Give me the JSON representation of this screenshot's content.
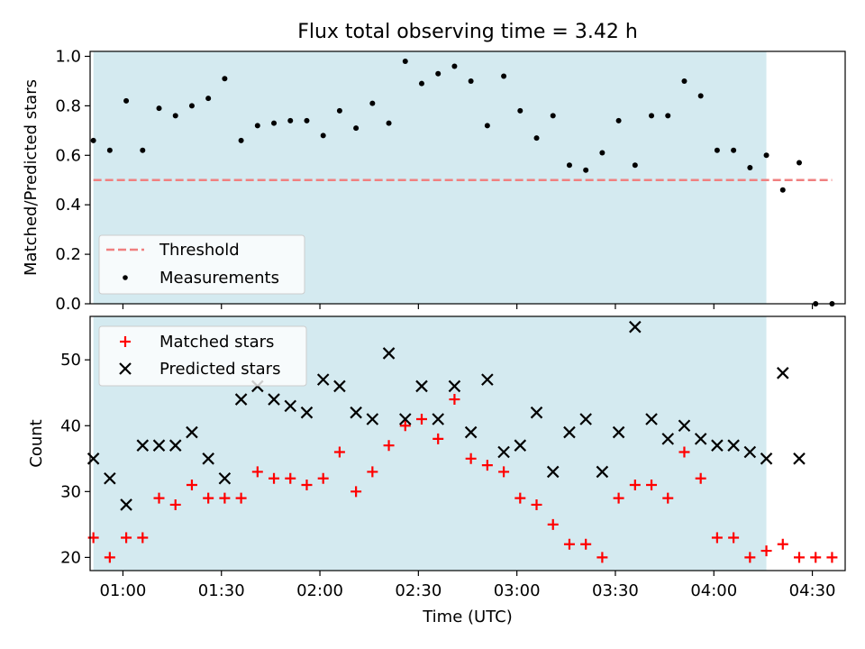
{
  "figure": {
    "title": "Flux total observing time = 3.42 h",
    "xlabel": "Time (UTC)"
  },
  "x_ticks": [
    "01:00",
    "01:30",
    "02:00",
    "02:30",
    "03:00",
    "03:30",
    "04:00",
    "04:30"
  ],
  "shade_color": "#d4eaf0",
  "chart_data": [
    {
      "type": "scatter",
      "ylabel": "Matched/Predicted stars",
      "xlim": [
        "00:50",
        "04:40"
      ],
      "ylim": [
        0,
        1.02
      ],
      "yticks": [
        0.0,
        0.2,
        0.4,
        0.6,
        0.8,
        1.0
      ],
      "yticklabels": [
        "0.0",
        "0.2",
        "0.4",
        "0.6",
        "0.8",
        "1.0"
      ],
      "shaded_interval": [
        "00:51",
        "04:16"
      ],
      "threshold": {
        "name": "Threshold",
        "y": 0.5,
        "x_range": [
          "00:51",
          "04:36"
        ],
        "color": "#f08080",
        "style": "dashed"
      },
      "legend": {
        "position": "lower-left",
        "entries": [
          "Threshold",
          "Measurements"
        ]
      },
      "series": [
        {
          "name": "Measurements",
          "color": "#000000",
          "marker": "dot",
          "x": [
            "00:51",
            "00:56",
            "01:01",
            "01:06",
            "01:11",
            "01:16",
            "01:21",
            "01:26",
            "01:31",
            "01:36",
            "01:41",
            "01:46",
            "01:51",
            "01:56",
            "02:01",
            "02:06",
            "02:11",
            "02:16",
            "02:21",
            "02:26",
            "02:31",
            "02:36",
            "02:41",
            "02:46",
            "02:51",
            "02:56",
            "03:01",
            "03:06",
            "03:11",
            "03:16",
            "03:21",
            "03:26",
            "03:31",
            "03:36",
            "03:41",
            "03:46",
            "03:51",
            "03:56",
            "04:01",
            "04:06",
            "04:11",
            "04:16",
            "04:21",
            "04:26",
            "04:31",
            "04:36"
          ],
          "y": [
            0.66,
            0.62,
            0.82,
            0.62,
            0.79,
            0.76,
            0.8,
            0.83,
            0.91,
            0.66,
            0.72,
            0.73,
            0.74,
            0.74,
            0.68,
            0.78,
            0.71,
            0.81,
            0.73,
            0.98,
            0.89,
            0.93,
            0.96,
            0.9,
            0.72,
            0.92,
            0.78,
            0.67,
            0.76,
            0.56,
            0.54,
            0.61,
            0.74,
            0.56,
            0.76,
            0.76,
            0.9,
            0.84,
            0.62,
            0.62,
            0.55,
            0.6,
            0.46,
            0.57,
            0.0,
            0.0
          ]
        }
      ]
    },
    {
      "type": "scatter",
      "ylabel": "Count",
      "xlim": [
        "00:50",
        "04:40"
      ],
      "ylim": [
        18,
        56.6
      ],
      "yticks": [
        20,
        30,
        40,
        50
      ],
      "yticklabels": [
        "20",
        "30",
        "40",
        "50"
      ],
      "shaded_interval": [
        "00:51",
        "04:16"
      ],
      "legend": {
        "position": "upper-left",
        "entries": [
          "Matched stars",
          "Predicted stars"
        ]
      },
      "series": [
        {
          "name": "Matched stars",
          "color": "#ff0000",
          "marker": "plus",
          "x": [
            "00:51",
            "00:56",
            "01:01",
            "01:06",
            "01:11",
            "01:16",
            "01:21",
            "01:26",
            "01:31",
            "01:36",
            "01:41",
            "01:46",
            "01:51",
            "01:56",
            "02:01",
            "02:06",
            "02:11",
            "02:16",
            "02:21",
            "02:26",
            "02:31",
            "02:36",
            "02:41",
            "02:46",
            "02:51",
            "02:56",
            "03:01",
            "03:06",
            "03:11",
            "03:16",
            "03:21",
            "03:26",
            "03:31",
            "03:36",
            "03:41",
            "03:46",
            "03:51",
            "03:56",
            "04:01",
            "04:06",
            "04:11",
            "04:16",
            "04:21",
            "04:26",
            "04:31",
            "04:36"
          ],
          "y": [
            23,
            20,
            23,
            23,
            29,
            28,
            31,
            29,
            29,
            29,
            33,
            32,
            32,
            31,
            32,
            36,
            30,
            33,
            37,
            40,
            41,
            38,
            44,
            35,
            34,
            33,
            29,
            28,
            25,
            22,
            22,
            20,
            29,
            31,
            31,
            29,
            36,
            32,
            23,
            23,
            20,
            21,
            22,
            20,
            20,
            20
          ]
        },
        {
          "name": "Predicted stars",
          "color": "#000000",
          "marker": "x",
          "x": [
            "00:51",
            "00:56",
            "01:01",
            "01:06",
            "01:11",
            "01:16",
            "01:21",
            "01:26",
            "01:31",
            "01:36",
            "01:41",
            "01:46",
            "01:51",
            "01:56",
            "02:01",
            "02:06",
            "02:11",
            "02:16",
            "02:21",
            "02:26",
            "02:31",
            "02:36",
            "02:41",
            "02:46",
            "02:51",
            "02:56",
            "03:01",
            "03:06",
            "03:11",
            "03:16",
            "03:21",
            "03:26",
            "03:31",
            "03:36",
            "03:41",
            "03:46",
            "03:51",
            "03:56",
            "04:01",
            "04:06",
            "04:11",
            "04:16",
            "04:21",
            "04:26"
          ],
          "y": [
            35,
            32,
            28,
            37,
            37,
            37,
            39,
            35,
            32,
            44,
            46,
            44,
            43,
            42,
            47,
            46,
            42,
            41,
            51,
            41,
            46,
            41,
            46,
            39,
            47,
            36,
            37,
            42,
            33,
            39,
            41,
            33,
            39,
            55,
            41,
            38,
            40,
            38,
            37,
            37,
            36,
            35,
            48,
            35
          ]
        }
      ]
    }
  ]
}
